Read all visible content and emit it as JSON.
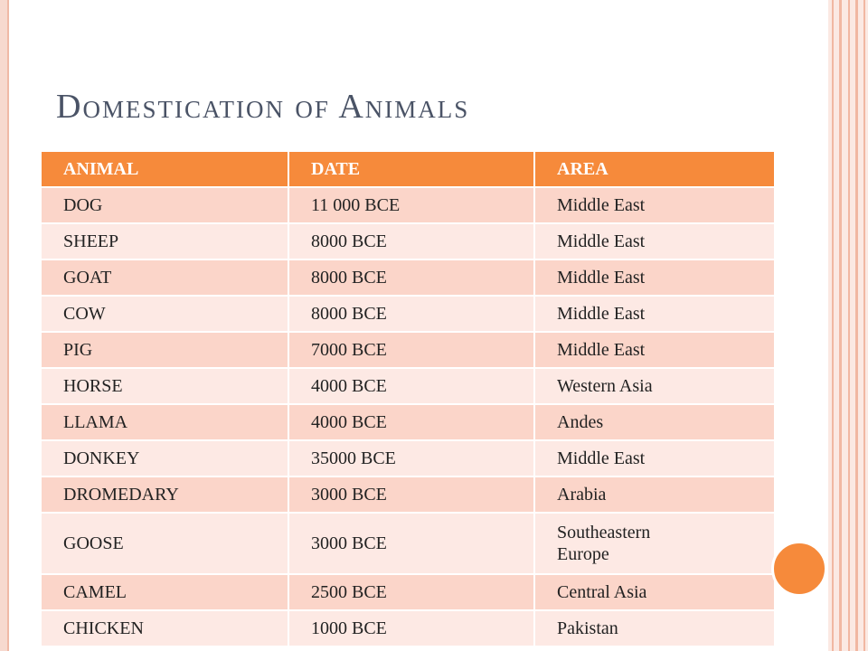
{
  "slide": {
    "title": "Domestication of Animals"
  },
  "table": {
    "headers": [
      "ANIMAL",
      "DATE",
      "AREA"
    ],
    "rows": [
      {
        "animal": "DOG",
        "date": "11 000 BCE",
        "area": "Middle East"
      },
      {
        "animal": "SHEEP",
        "date": "8000 BCE",
        "area": "Middle East"
      },
      {
        "animal": "GOAT",
        "date": "8000 BCE",
        "area": "Middle East"
      },
      {
        "animal": "COW",
        "date": "8000 BCE",
        "area": "Middle East"
      },
      {
        "animal": "PIG",
        "date": "7000 BCE",
        "area": "Middle East"
      },
      {
        "animal": "HORSE",
        "date": "4000 BCE",
        "area": "Western Asia"
      },
      {
        "animal": "LLAMA",
        "date": "4000 BCE",
        "area": "Andes"
      },
      {
        "animal": "DONKEY",
        "date": "35000 BCE",
        "area": "Middle East"
      },
      {
        "animal": "DROMEDARY",
        "date": "3000 BCE",
        "area": "Arabia"
      },
      {
        "animal": "GOOSE",
        "date": "3000 BCE",
        "area": "Southeastern Europe"
      },
      {
        "animal": "CAMEL",
        "date": "2500 BCE",
        "area": "Central Asia"
      },
      {
        "animal": "CHICKEN",
        "date": "1000 BCE",
        "area": "Pakistan"
      }
    ]
  },
  "theme": {
    "header_color": "#f68a3b",
    "row_odd_color": "#fbd5c9",
    "row_even_color": "#fde9e4",
    "title_color": "#4a5366",
    "accent_circle_color": "#f68a3b"
  }
}
